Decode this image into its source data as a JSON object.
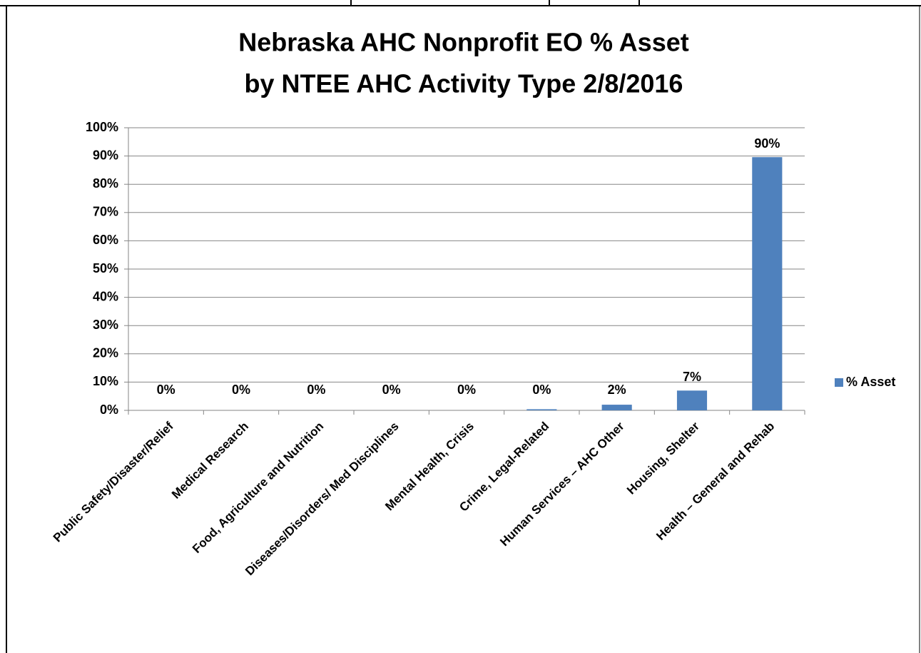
{
  "chart_data": {
    "type": "bar",
    "title": [
      "Nebraska AHC Nonprofit EO % Asset",
      "by NTEE AHC Activity Type 2/8/2016"
    ],
    "categories": [
      "Public Safety/Disaster/Relief",
      "Medical Research",
      "Food, Agriculture and Nutrition",
      "Diseases/Disorders/ Med  Disciplines",
      "Mental Health, Crisis",
      "Crime, Legal-Related",
      "Human Services – AHC  Other",
      "Housing, Shelter",
      "Health – General and Rehab"
    ],
    "series": [
      {
        "name": "% Asset",
        "color": "#4f81bd",
        "values": [
          0,
          0,
          0,
          0,
          0,
          0.4,
          2,
          7,
          89.6
        ],
        "value_labels": [
          "0%",
          "0%",
          "0%",
          "0%",
          "0%",
          "0%",
          "2%",
          "7%",
          "90%"
        ]
      }
    ],
    "ylim": [
      0,
      100
    ],
    "yticks": [
      {
        "value": 0,
        "label": "0%"
      },
      {
        "value": 10,
        "label": "10%"
      },
      {
        "value": 20,
        "label": "20%"
      },
      {
        "value": 30,
        "label": "30%"
      },
      {
        "value": 40,
        "label": "40%"
      },
      {
        "value": 50,
        "label": "50%"
      },
      {
        "value": 60,
        "label": "60%"
      },
      {
        "value": 70,
        "label": "70%"
      },
      {
        "value": 80,
        "label": "80%"
      },
      {
        "value": 90,
        "label": "90%"
      },
      {
        "value": 100,
        "label": "100%"
      }
    ],
    "grid": true,
    "legend": "right"
  }
}
